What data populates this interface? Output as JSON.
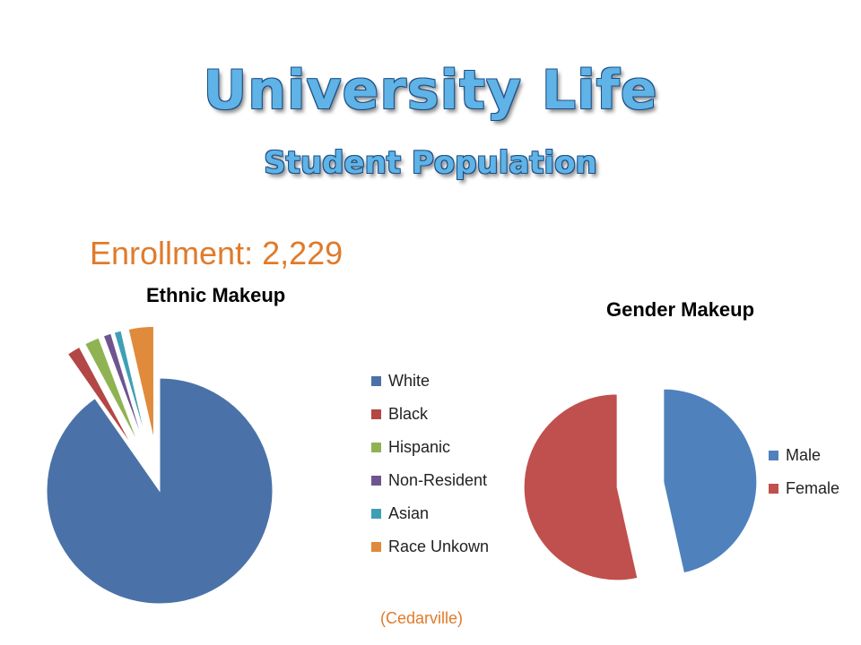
{
  "header": {
    "title": "University Life",
    "subtitle": "Student Population"
  },
  "enrollment_text": "Enrollment: 2,229",
  "source_text": "(Cedarville)",
  "colors": {
    "title_fill": "#5fb3e6",
    "accent_orange": "#e07b2b"
  },
  "chart_data": [
    {
      "type": "pie",
      "title": "Ethnic Makeup",
      "categories": [
        "White",
        "Black",
        "Hispanic",
        "Non-Resident",
        "Asian",
        "Race Unkown"
      ],
      "values": [
        90.3,
        1.9,
        2.1,
        1.1,
        1.0,
        3.6
      ],
      "colors": [
        "#4a72a8",
        "#b34745",
        "#8fb352",
        "#6f558f",
        "#3fa0b5",
        "#e08a3c"
      ],
      "exploded": true,
      "legend_position": "right"
    },
    {
      "type": "pie",
      "title": "Gender Makeup",
      "categories": [
        "Male",
        "Female"
      ],
      "values": [
        46.5,
        53.5
      ],
      "colors": [
        "#4f81bd",
        "#c0504d"
      ],
      "exploded": true,
      "legend_position": "right"
    }
  ]
}
